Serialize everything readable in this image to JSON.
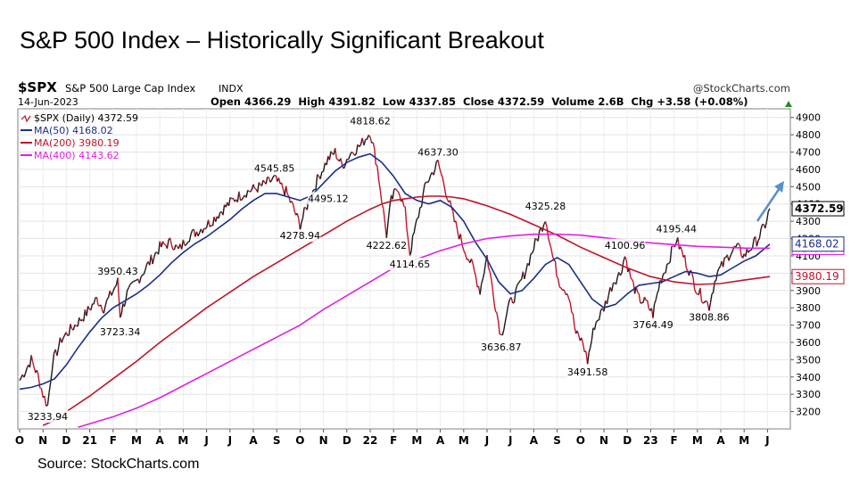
{
  "slide": {
    "title": "S&P 500 Index – Historically Significant Breakout",
    "source": "Source: StockCharts.com"
  },
  "chart_header": {
    "symbol": "$SPX",
    "name": "S&P 500 Large Cap Index",
    "exchange": "INDX",
    "brand": "@StockCharts.com",
    "date": "14-Jun-2023",
    "ohlc": "Open 4366.29  High 4391.82  Low 4337.85  Close 4372.59  Volume 2.6B  Chg +3.58 (+0.08%)"
  },
  "legend": {
    "price": "$SPX (Daily) 4372.59",
    "ma50": "MA(50) 4168.02",
    "ma200": "MA(200) 3980.19",
    "ma400": "MA(400) 4143.62"
  },
  "colors": {
    "up": "#1a1a1a",
    "down": "#c0142a",
    "ma50": "#1c2f8a",
    "ma200": "#c0142a",
    "ma400": "#e020e0",
    "arrow": "#5b8fc9"
  },
  "chart_data": {
    "type": "line",
    "title": "$SPX (Daily)",
    "y_axis": {
      "position": "right",
      "min": 3100,
      "max": 4950,
      "ticks": [
        3200,
        3300,
        3400,
        3500,
        3600,
        3700,
        3800,
        3900,
        4000,
        4100,
        4200,
        4300,
        4400,
        4500,
        4600,
        4700,
        4800,
        4900
      ]
    },
    "x_axis": {
      "labels": [
        "O",
        "N",
        "D",
        "21",
        "F",
        "M",
        "A",
        "M",
        "J",
        "J",
        "A",
        "S",
        "O",
        "N",
        "D",
        "22",
        "F",
        "M",
        "A",
        "M",
        "J",
        "J",
        "A",
        "S",
        "O",
        "N",
        "D",
        "23",
        "F",
        "M",
        "A",
        "M",
        "J"
      ]
    },
    "last_values": {
      "price": "4372.59",
      "ma50": "4168.02",
      "ma400": "4143.62",
      "ma200": "3980.19"
    },
    "annotations": [
      {
        "label": "3233.94",
        "month": 1.2,
        "value": 3233.94
      },
      {
        "label": "3950.43",
        "month": 4.2,
        "value": 3950.43
      },
      {
        "label": "3723.34",
        "month": 4.3,
        "value": 3723.34
      },
      {
        "label": "4545.85",
        "month": 10.9,
        "value": 4545.85
      },
      {
        "label": "4278.94",
        "month": 12.0,
        "value": 4278.94
      },
      {
        "label": "4495.12",
        "month": 13.2,
        "value": 4495.12
      },
      {
        "label": "4818.62",
        "month": 15.0,
        "value": 4818.62
      },
      {
        "label": "4222.62",
        "month": 15.7,
        "value": 4222.62
      },
      {
        "label": "4114.65",
        "month": 16.7,
        "value": 4114.65
      },
      {
        "label": "4637.30",
        "month": 17.9,
        "value": 4637.3
      },
      {
        "label": "3636.87",
        "month": 20.6,
        "value": 3636.87
      },
      {
        "label": "4325.28",
        "month": 22.5,
        "value": 4325.28
      },
      {
        "label": "3491.58",
        "month": 24.3,
        "value": 3491.58
      },
      {
        "label": "4100.96",
        "month": 25.9,
        "value": 4100.96
      },
      {
        "label": "3764.49",
        "month": 27.1,
        "value": 3764.49
      },
      {
        "label": "4195.44",
        "month": 28.1,
        "value": 4195.44
      },
      {
        "label": "3808.86",
        "month": 29.5,
        "value": 3808.86
      }
    ],
    "series": [
      {
        "name": "$SPX (Daily)",
        "points": [
          [
            0,
            3380
          ],
          [
            0.5,
            3500
          ],
          [
            0.8,
            3400
          ],
          [
            1.0,
            3300
          ],
          [
            1.2,
            3234
          ],
          [
            1.4,
            3480
          ],
          [
            1.8,
            3620
          ],
          [
            2.3,
            3690
          ],
          [
            2.8,
            3760
          ],
          [
            3.3,
            3850
          ],
          [
            3.6,
            3800
          ],
          [
            4.0,
            3900
          ],
          [
            4.2,
            3950
          ],
          [
            4.3,
            3760
          ],
          [
            4.6,
            3880
          ],
          [
            5.0,
            3950
          ],
          [
            5.5,
            4050
          ],
          [
            6.0,
            4150
          ],
          [
            6.5,
            4180
          ],
          [
            6.8,
            4130
          ],
          [
            7.2,
            4210
          ],
          [
            7.7,
            4250
          ],
          [
            8.2,
            4300
          ],
          [
            8.7,
            4370
          ],
          [
            9.2,
            4430
          ],
          [
            9.7,
            4470
          ],
          [
            10.3,
            4500
          ],
          [
            10.9,
            4545
          ],
          [
            11.4,
            4470
          ],
          [
            11.7,
            4380
          ],
          [
            12.0,
            4279
          ],
          [
            12.3,
            4390
          ],
          [
            12.8,
            4560
          ],
          [
            13.2,
            4660
          ],
          [
            13.5,
            4700
          ],
          [
            13.8,
            4620
          ],
          [
            14.2,
            4700
          ],
          [
            14.6,
            4740
          ],
          [
            15.0,
            4819
          ],
          [
            15.3,
            4620
          ],
          [
            15.7,
            4223
          ],
          [
            15.9,
            4420
          ],
          [
            16.2,
            4500
          ],
          [
            16.5,
            4350
          ],
          [
            16.7,
            4115
          ],
          [
            17.0,
            4300
          ],
          [
            17.4,
            4520
          ],
          [
            17.9,
            4637
          ],
          [
            18.3,
            4450
          ],
          [
            18.6,
            4300
          ],
          [
            19.0,
            4150
          ],
          [
            19.4,
            4030
          ],
          [
            19.7,
            3900
          ],
          [
            20.0,
            4100
          ],
          [
            20.3,
            3860
          ],
          [
            20.6,
            3637
          ],
          [
            20.9,
            3800
          ],
          [
            21.3,
            3900
          ],
          [
            21.6,
            4000
          ],
          [
            22.0,
            4150
          ],
          [
            22.3,
            4250
          ],
          [
            22.5,
            4325
          ],
          [
            22.8,
            4100
          ],
          [
            23.1,
            3950
          ],
          [
            23.5,
            3880
          ],
          [
            23.8,
            3650
          ],
          [
            24.1,
            3600
          ],
          [
            24.3,
            3492
          ],
          [
            24.6,
            3700
          ],
          [
            25.0,
            3800
          ],
          [
            25.4,
            3950
          ],
          [
            25.7,
            4000
          ],
          [
            25.9,
            4101
          ],
          [
            26.2,
            3950
          ],
          [
            26.5,
            3850
          ],
          [
            26.8,
            3830
          ],
          [
            27.1,
            3764
          ],
          [
            27.4,
            3950
          ],
          [
            27.7,
            4050
          ],
          [
            28.1,
            4195
          ],
          [
            28.4,
            4100
          ],
          [
            28.7,
            4000
          ],
          [
            29.0,
            3900
          ],
          [
            29.3,
            3850
          ],
          [
            29.5,
            3809
          ],
          [
            29.8,
            3990
          ],
          [
            30.1,
            4050
          ],
          [
            30.4,
            4120
          ],
          [
            30.7,
            4150
          ],
          [
            31.0,
            4100
          ],
          [
            31.3,
            4150
          ],
          [
            31.6,
            4200
          ],
          [
            31.9,
            4280
          ],
          [
            32.1,
            4373
          ]
        ]
      },
      {
        "name": "MA(50)",
        "points": [
          [
            0,
            3330
          ],
          [
            0.5,
            3340
          ],
          [
            1.0,
            3360
          ],
          [
            1.5,
            3390
          ],
          [
            2.0,
            3470
          ],
          [
            2.5,
            3570
          ],
          [
            3.0,
            3660
          ],
          [
            3.5,
            3740
          ],
          [
            4.0,
            3800
          ],
          [
            4.5,
            3840
          ],
          [
            5.0,
            3880
          ],
          [
            5.5,
            3930
          ],
          [
            6.0,
            3990
          ],
          [
            6.5,
            4060
          ],
          [
            7.0,
            4120
          ],
          [
            7.5,
            4170
          ],
          [
            8.0,
            4210
          ],
          [
            8.5,
            4260
          ],
          [
            9.0,
            4310
          ],
          [
            9.5,
            4370
          ],
          [
            10.0,
            4420
          ],
          [
            10.5,
            4460
          ],
          [
            11.0,
            4460
          ],
          [
            11.5,
            4440
          ],
          [
            12.0,
            4420
          ],
          [
            12.5,
            4450
          ],
          [
            13.0,
            4520
          ],
          [
            13.5,
            4590
          ],
          [
            14.0,
            4640
          ],
          [
            14.5,
            4670
          ],
          [
            15.0,
            4690
          ],
          [
            15.5,
            4640
          ],
          [
            16.0,
            4560
          ],
          [
            16.5,
            4460
          ],
          [
            17.0,
            4420
          ],
          [
            17.5,
            4400
          ],
          [
            18.0,
            4420
          ],
          [
            18.5,
            4380
          ],
          [
            19.0,
            4300
          ],
          [
            19.5,
            4180
          ],
          [
            20.0,
            4080
          ],
          [
            20.5,
            3950
          ],
          [
            21.0,
            3880
          ],
          [
            21.5,
            3900
          ],
          [
            22.0,
            3970
          ],
          [
            22.5,
            4050
          ],
          [
            23.0,
            4090
          ],
          [
            23.5,
            4050
          ],
          [
            24.0,
            3950
          ],
          [
            24.5,
            3850
          ],
          [
            25.0,
            3800
          ],
          [
            25.5,
            3820
          ],
          [
            26.0,
            3880
          ],
          [
            26.5,
            3930
          ],
          [
            27.0,
            3940
          ],
          [
            27.5,
            3950
          ],
          [
            28.0,
            3980
          ],
          [
            28.5,
            4010
          ],
          [
            29.0,
            4000
          ],
          [
            29.5,
            3980
          ],
          [
            30.0,
            3990
          ],
          [
            30.5,
            4030
          ],
          [
            31.0,
            4070
          ],
          [
            31.5,
            4100
          ],
          [
            32.1,
            4168
          ]
        ]
      },
      {
        "name": "MA(200)",
        "points": [
          [
            1.0,
            3120
          ],
          [
            1.5,
            3150
          ],
          [
            2.0,
            3200
          ],
          [
            3.0,
            3290
          ],
          [
            4.0,
            3390
          ],
          [
            5.0,
            3490
          ],
          [
            6.0,
            3600
          ],
          [
            7.0,
            3700
          ],
          [
            8.0,
            3800
          ],
          [
            9.0,
            3890
          ],
          [
            10.0,
            3980
          ],
          [
            11.0,
            4060
          ],
          [
            12.0,
            4140
          ],
          [
            13.0,
            4220
          ],
          [
            14.0,
            4300
          ],
          [
            15.0,
            4370
          ],
          [
            15.5,
            4400
          ],
          [
            16.0,
            4420
          ],
          [
            16.5,
            4430
          ],
          [
            17.0,
            4440
          ],
          [
            17.5,
            4445
          ],
          [
            18.0,
            4445
          ],
          [
            18.5,
            4440
          ],
          [
            19.0,
            4430
          ],
          [
            19.5,
            4410
          ],
          [
            20.0,
            4390
          ],
          [
            21.0,
            4340
          ],
          [
            22.0,
            4280
          ],
          [
            23.0,
            4220
          ],
          [
            24.0,
            4150
          ],
          [
            25.0,
            4090
          ],
          [
            26.0,
            4030
          ],
          [
            27.0,
            3980
          ],
          [
            28.0,
            3950
          ],
          [
            29.0,
            3935
          ],
          [
            30.0,
            3940
          ],
          [
            31.0,
            3960
          ],
          [
            32.1,
            3980
          ]
        ]
      },
      {
        "name": "MA(400)",
        "points": [
          [
            2.5,
            3110
          ],
          [
            4.0,
            3170
          ],
          [
            5.0,
            3220
          ],
          [
            6.0,
            3280
          ],
          [
            7.0,
            3350
          ],
          [
            8.0,
            3420
          ],
          [
            9.0,
            3490
          ],
          [
            10.0,
            3560
          ],
          [
            11.0,
            3630
          ],
          [
            12.0,
            3700
          ],
          [
            13.0,
            3790
          ],
          [
            14.0,
            3870
          ],
          [
            15.0,
            3950
          ],
          [
            16.0,
            4030
          ],
          [
            17.0,
            4080
          ],
          [
            18.0,
            4130
          ],
          [
            19.0,
            4170
          ],
          [
            20.0,
            4200
          ],
          [
            21.0,
            4215
          ],
          [
            22.0,
            4225
          ],
          [
            23.0,
            4225
          ],
          [
            24.0,
            4220
          ],
          [
            25.0,
            4205
          ],
          [
            26.0,
            4190
          ],
          [
            27.0,
            4175
          ],
          [
            28.0,
            4165
          ],
          [
            29.0,
            4155
          ],
          [
            30.0,
            4150
          ],
          [
            31.0,
            4145
          ],
          [
            32.1,
            4144
          ]
        ]
      }
    ]
  }
}
